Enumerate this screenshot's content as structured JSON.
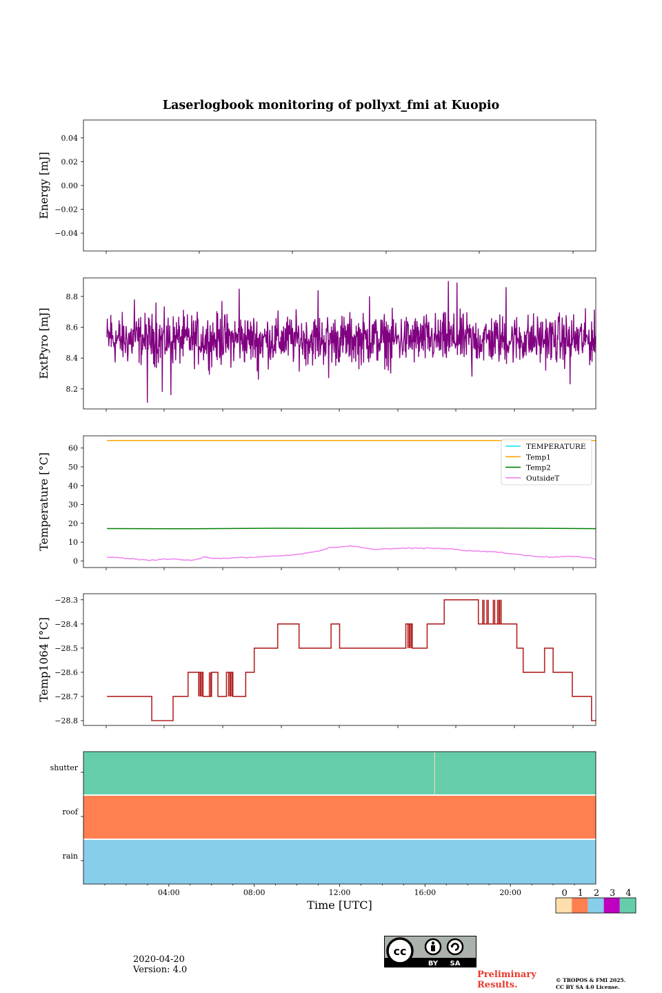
{
  "figure": {
    "date": "2020-04-20",
    "version": "Version: 4.0",
    "preliminary_line1": "Preliminary",
    "preliminary_line2": "Results.",
    "copyright_line1": "© TROPOS & FMI 2025.",
    "copyright_line2": "CC BY SA 4.0 License.",
    "license_badge": {
      "cc": "cc",
      "by": "BY",
      "sa": "SA"
    }
  },
  "chart_data": [
    {
      "id": "energy",
      "type": "line",
      "title": "Laserlogbook monitoring of pollyxt_fmi at Kuopio",
      "ylabel": "Energy [mJ]",
      "ylim": [
        -0.055,
        0.055
      ],
      "yticks": [
        0.04,
        0.02,
        0.0,
        -0.02,
        -0.04
      ],
      "ytick_labels": [
        "0.04",
        "0.02",
        "0.00",
        "−0.02",
        "−0.04"
      ],
      "xlim": [
        0,
        24
      ],
      "series": []
    },
    {
      "id": "extpyro",
      "type": "line",
      "ylabel": "ExtPyro [mJ]",
      "ylim": [
        8.07,
        8.92
      ],
      "yticks": [
        8.8,
        8.6,
        8.4,
        8.2
      ],
      "ytick_labels": [
        "8.8",
        "8.6",
        "8.4",
        "8.2"
      ],
      "xlim": [
        0,
        24
      ],
      "series": [
        {
          "name": "ExtPyro",
          "color": "#800080",
          "mean": 8.52,
          "x_start": 1.1,
          "x_end": 25.0,
          "noise": 0.1,
          "spikes": [
            [
              1.3,
              8.68
            ],
            [
              2.4,
              8.78
            ],
            [
              3.0,
              8.11
            ],
            [
              3.4,
              8.76
            ],
            [
              3.7,
              8.18
            ],
            [
              4.1,
              8.16
            ],
            [
              6.5,
              8.77
            ],
            [
              7.3,
              8.85
            ],
            [
              8.2,
              8.26
            ],
            [
              11.0,
              8.84
            ],
            [
              11.5,
              8.27
            ],
            [
              13.4,
              8.8
            ],
            [
              14.4,
              8.3
            ],
            [
              17.1,
              8.9
            ],
            [
              17.5,
              8.89
            ],
            [
              18.2,
              8.28
            ],
            [
              19.8,
              8.86
            ],
            [
              22.8,
              8.23
            ],
            [
              24.9,
              8.16
            ]
          ]
        }
      ]
    },
    {
      "id": "temperature",
      "type": "line",
      "ylabel": "Temperature [°C]",
      "ylim": [
        -3.5,
        66.5
      ],
      "yticks": [
        60,
        50,
        40,
        30,
        20,
        10,
        0
      ],
      "ytick_labels": [
        "60",
        "50",
        "40",
        "30",
        "20",
        "10",
        "0"
      ],
      "xlim": [
        0,
        24
      ],
      "legend": "top-right",
      "series": [
        {
          "name": "TEMPERATURE",
          "color": "#00e5ee",
          "x": [],
          "values": []
        },
        {
          "name": "Temp1",
          "color": "#ffa500",
          "x": [
            1.1,
            25.0
          ],
          "values": [
            64.0,
            64.0
          ]
        },
        {
          "name": "Temp2",
          "color": "#008000",
          "x": [
            1.1,
            5,
            9,
            12,
            17,
            21,
            25.0
          ],
          "values": [
            17.2,
            17.1,
            17.4,
            17.3,
            17.5,
            17.4,
            17.1
          ]
        },
        {
          "name": "OutsideT",
          "color": "#ee82ee",
          "x": [
            1.1,
            2.0,
            3.0,
            3.8,
            4.5,
            5.2,
            5.7,
            6.0,
            7.0,
            8.0,
            9.0,
            10.0,
            11.0,
            11.5,
            12.5,
            13.5,
            15.0,
            16.0,
            17.0,
            18.0,
            19.0,
            20.0,
            21.0,
            22.0,
            23.0,
            24.0,
            25.0
          ],
          "values": [
            2.0,
            1.5,
            0.3,
            1.0,
            0.8,
            0.4,
            2.2,
            1.3,
            1.6,
            2.0,
            2.5,
            3.5,
            5.2,
            7.0,
            8.0,
            6.2,
            6.7,
            6.8,
            6.6,
            5.5,
            5.0,
            4.0,
            2.6,
            2.0,
            2.5,
            1.2,
            1.9
          ]
        }
      ]
    },
    {
      "id": "temp1064",
      "type": "line",
      "ylabel": "Temp1064 [°C]",
      "ylim": [
        -28.82,
        -28.275
      ],
      "yticks": [
        -28.3,
        -28.4,
        -28.5,
        -28.6,
        -28.7,
        -28.8
      ],
      "ytick_labels": [
        "−28.3",
        "−28.4",
        "−28.5",
        "−28.6",
        "−28.7",
        "−28.8"
      ],
      "xlim": [
        0,
        24
      ],
      "series": [
        {
          "name": "Temp1064",
          "color": "#b22222",
          "x": [
            1.1,
            3.2,
            3.2,
            4.2,
            4.2,
            4.9,
            4.9,
            5.6,
            5.6,
            6.0,
            6.0,
            6.3,
            6.3,
            6.7,
            6.7,
            7.0,
            7.0,
            7.6,
            7.6,
            8.0,
            8.0,
            9.1,
            9.1,
            10.1,
            10.1,
            11.6,
            11.6,
            12.0,
            12.0,
            15.1,
            15.1,
            15.4,
            15.4,
            16.1,
            16.1,
            16.9,
            16.9,
            18.5,
            18.5,
            20.3,
            20.3,
            20.6,
            20.6,
            21.6,
            21.6,
            22.0,
            22.0,
            22.9,
            22.9,
            23.8,
            23.8,
            24.5,
            24.5,
            25.0
          ],
          "values": [
            -28.7,
            -28.7,
            -28.8,
            -28.8,
            -28.7,
            -28.7,
            -28.6,
            -28.6,
            -28.7,
            -28.7,
            -28.6,
            -28.6,
            -28.7,
            -28.7,
            -28.6,
            -28.6,
            -28.7,
            -28.7,
            -28.6,
            -28.6,
            -28.5,
            -28.5,
            -28.4,
            -28.4,
            -28.5,
            -28.5,
            -28.4,
            -28.4,
            -28.5,
            -28.5,
            -28.4,
            -28.4,
            -28.5,
            -28.5,
            -28.4,
            -28.4,
            -28.3,
            -28.3,
            -28.4,
            -28.4,
            -28.5,
            -28.5,
            -28.6,
            -28.6,
            -28.5,
            -28.5,
            -28.6,
            -28.6,
            -28.7,
            -28.7,
            -28.8,
            -28.8,
            -28.8,
            -28.8
          ],
          "flicker": [
            [
              5.4,
              -28.6,
              -28.7
            ],
            [
              5.5,
              -28.6,
              -28.7
            ],
            [
              5.9,
              -28.6,
              -28.7
            ],
            [
              6.8,
              -28.6,
              -28.7
            ],
            [
              6.9,
              -28.6,
              -28.7
            ],
            [
              15.2,
              -28.4,
              -28.5
            ],
            [
              15.3,
              -28.4,
              -28.5
            ],
            [
              18.7,
              -28.3,
              -28.4
            ],
            [
              18.9,
              -28.3,
              -28.4
            ],
            [
              19.2,
              -28.3,
              -28.4
            ],
            [
              19.4,
              -28.3,
              -28.4
            ],
            [
              19.5,
              -28.3,
              -28.4
            ]
          ]
        }
      ]
    },
    {
      "id": "status",
      "type": "heatmap",
      "rows": [
        "shutter",
        "roof",
        "rain"
      ],
      "xlim": [
        0,
        24
      ],
      "xlabel": "Time [UTC]",
      "xticks": [
        4,
        8,
        12,
        16,
        20
      ],
      "xtick_labels": [
        "04:00",
        "08:00",
        "12:00",
        "16:00",
        "20:00"
      ],
      "values": [
        {
          "row": "shutter",
          "from": 0,
          "to": 24,
          "level": 4,
          "gaps": [
            16.45
          ]
        },
        {
          "row": "roof",
          "from": 0,
          "to": 24,
          "level": 1
        },
        {
          "row": "rain",
          "from": 0,
          "to": 24,
          "level": 2
        }
      ],
      "colorbar": {
        "levels": [
          0,
          1,
          2,
          3,
          4
        ],
        "labels": [
          "0",
          "1",
          "2",
          "3",
          "4"
        ],
        "colors": [
          "#ffdead",
          "#ff7f50",
          "#87ceeb",
          "#c000c0",
          "#66cdaa"
        ]
      }
    }
  ]
}
